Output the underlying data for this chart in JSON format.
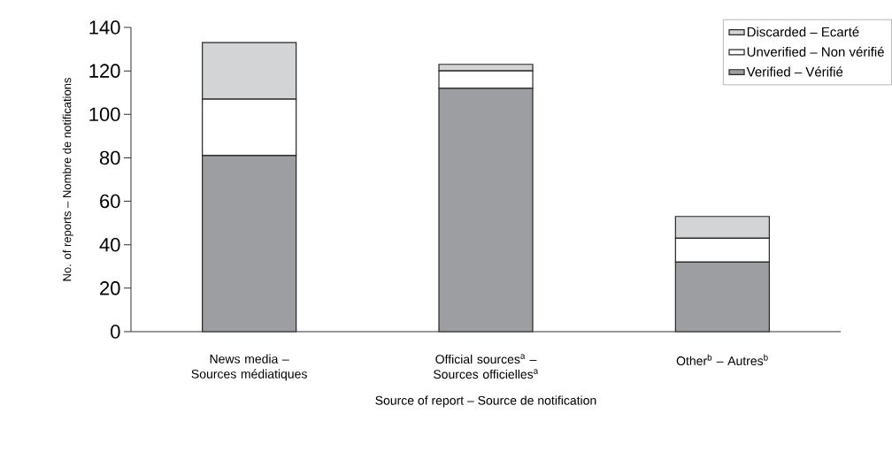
{
  "chart_data": {
    "type": "bar",
    "stacked": true,
    "xlabel": "Source of report – Source de notification",
    "ylabel": "No. of reports – Nombre de notifications",
    "categories": [
      "News media – Sources médiatiques",
      "Official sources$^{a}$ – Sources officielles$^{a}$",
      "Other$^{b}$ – Autres$^{b}$"
    ],
    "series": [
      {
        "name": "Verified – Vérifié",
        "color": "#9d9ea2",
        "values": [
          81,
          112,
          32
        ]
      },
      {
        "name": "Unverified – Non vérifié",
        "color": "#ffffff",
        "values": [
          26,
          8,
          11
        ]
      },
      {
        "name": "Discarded – Ecarté",
        "color": "#d3d4d6",
        "values": [
          26,
          3,
          10
        ]
      }
    ],
    "ylim": [
      0,
      140
    ],
    "yticks": [
      0,
      20,
      40,
      60,
      80,
      100,
      120,
      140
    ],
    "grid": false,
    "legend": "top right"
  }
}
